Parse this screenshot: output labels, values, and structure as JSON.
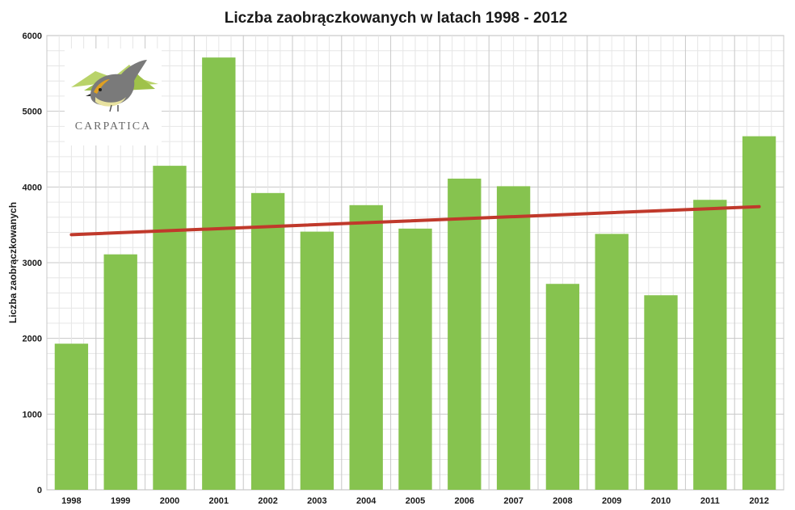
{
  "chart_data": {
    "type": "bar",
    "title": "Liczba zaobrączkowanych w latach 1998 - 2012",
    "ylabel": "Liczba zaobrączkowanych",
    "xlabel": "",
    "categories": [
      "1998",
      "1999",
      "2000",
      "2001",
      "2002",
      "2003",
      "2004",
      "2005",
      "2006",
      "2007",
      "2008",
      "2009",
      "2010",
      "2011",
      "2012"
    ],
    "values": [
      1930,
      3110,
      4280,
      5710,
      3920,
      3410,
      3760,
      3450,
      4110,
      4010,
      2720,
      3380,
      2570,
      3830,
      4670
    ],
    "ylim": [
      0,
      6000
    ],
    "yticks": [
      0,
      1000,
      2000,
      3000,
      4000,
      5000,
      6000
    ],
    "grid": true,
    "bar_color": "#86c34f",
    "trendline": {
      "color": "#c0392b",
      "start_value": 3370,
      "end_value": 3740
    }
  },
  "logo": {
    "text": "CARPATICA",
    "icon": "bird-icon"
  }
}
